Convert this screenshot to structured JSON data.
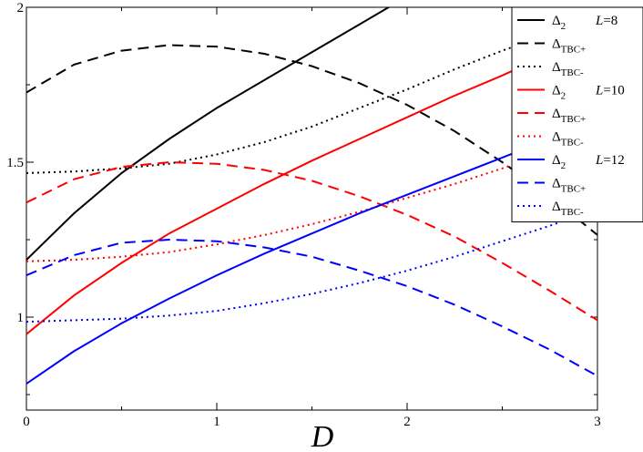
{
  "chart_data": {
    "type": "line",
    "xlabel": "D",
    "ylabel": "",
    "xlim": [
      0,
      3
    ],
    "ylim": [
      0.7,
      2.0
    ],
    "x_ticks": [
      "0",
      "1",
      "2",
      "3"
    ],
    "y_ticks": [
      "1",
      "1.5",
      "2"
    ],
    "x_tick_values": [
      0,
      1,
      2,
      3
    ],
    "y_tick_values": [
      1,
      1.5,
      2
    ],
    "x": [
      0,
      0.25,
      0.5,
      0.75,
      1.0,
      1.25,
      1.5,
      1.75,
      2.0,
      2.25,
      2.5,
      2.75,
      3.0
    ],
    "legend_position": "top-right",
    "legend_groups": [
      {
        "label": "L=8",
        "color": "#000000"
      },
      {
        "label": "L=10",
        "color": "#ff0000"
      },
      {
        "label": "L=12",
        "color": "#0000ff"
      }
    ],
    "series": [
      {
        "name": "Δ2",
        "group": "L=8",
        "color": "#000000",
        "dash": "solid",
        "values": [
          1.185,
          1.335,
          1.465,
          1.575,
          1.675,
          1.765,
          1.855,
          1.945,
          2.035,
          null,
          null,
          null,
          null
        ]
      },
      {
        "name": "ΔTBC+",
        "group": "L=8",
        "color": "#000000",
        "dash": "dashed",
        "values": [
          1.725,
          1.815,
          1.86,
          1.878,
          1.873,
          1.85,
          1.81,
          1.755,
          1.685,
          1.6,
          1.5,
          1.39,
          1.265
        ]
      },
      {
        "name": "ΔTBC-",
        "group": "L=8",
        "color": "#000000",
        "dash": "dotted",
        "values": [
          1.465,
          1.47,
          1.48,
          1.495,
          1.525,
          1.565,
          1.615,
          1.675,
          1.735,
          1.8,
          1.86,
          1.915,
          1.97
        ]
      },
      {
        "name": "Δ2",
        "group": "L=10",
        "color": "#ff0000",
        "dash": "solid",
        "values": [
          0.945,
          1.07,
          1.175,
          1.27,
          1.35,
          1.43,
          1.505,
          1.575,
          1.645,
          1.715,
          1.78,
          1.85,
          1.915
        ]
      },
      {
        "name": "ΔTBC+",
        "group": "L=10",
        "color": "#ff0000",
        "dash": "dashed",
        "values": [
          1.37,
          1.445,
          1.485,
          1.5,
          1.495,
          1.475,
          1.44,
          1.39,
          1.33,
          1.26,
          1.175,
          1.085,
          0.99
        ]
      },
      {
        "name": "ΔTBC-",
        "group": "L=10",
        "color": "#ff0000",
        "dash": "dotted",
        "values": [
          1.18,
          1.185,
          1.195,
          1.21,
          1.235,
          1.265,
          1.3,
          1.34,
          1.385,
          1.43,
          1.48,
          1.535,
          1.59
        ]
      },
      {
        "name": "Δ2",
        "group": "L=12",
        "color": "#0000ff",
        "dash": "solid",
        "values": [
          0.785,
          0.89,
          0.98,
          1.06,
          1.135,
          1.205,
          1.27,
          1.335,
          1.395,
          1.455,
          1.515,
          1.575,
          1.635
        ]
      },
      {
        "name": "ΔTBC+",
        "group": "L=12",
        "color": "#0000ff",
        "dash": "dashed",
        "values": [
          1.135,
          1.2,
          1.24,
          1.25,
          1.245,
          1.225,
          1.195,
          1.15,
          1.1,
          1.04,
          0.97,
          0.895,
          0.81
        ]
      },
      {
        "name": "ΔTBC-",
        "group": "L=12",
        "color": "#0000ff",
        "dash": "dotted",
        "values": [
          0.985,
          0.99,
          0.995,
          1.005,
          1.02,
          1.045,
          1.075,
          1.11,
          1.15,
          1.195,
          1.245,
          1.295,
          1.35
        ]
      }
    ]
  }
}
